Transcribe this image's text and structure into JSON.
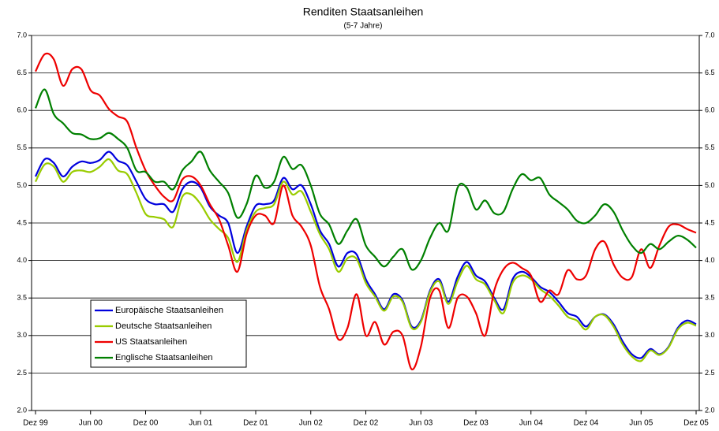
{
  "chart_data": {
    "type": "line",
    "title": "Renditen Staatsanleihen",
    "subtitle": "(5-7 Jahre)",
    "categories": [
      "Dez 99",
      null,
      null,
      null,
      null,
      null,
      "Jun 00",
      null,
      null,
      null,
      null,
      null,
      "Dez 00",
      null,
      null,
      null,
      null,
      null,
      "Jun 01",
      null,
      null,
      null,
      null,
      null,
      "Dez 01",
      null,
      null,
      null,
      null,
      null,
      "Jun 02",
      null,
      null,
      null,
      null,
      null,
      "Dez 02",
      null,
      null,
      null,
      null,
      null,
      "Jun 03",
      null,
      null,
      null,
      null,
      null,
      "Dez 03",
      null,
      null,
      null,
      null,
      null,
      "Jun 04",
      null,
      null,
      null,
      null,
      null,
      "Dez 04",
      null,
      null,
      null,
      null,
      null,
      "Jun 05",
      null,
      null,
      null,
      null,
      null,
      "Dez 05"
    ],
    "series": [
      {
        "name": "Europäische Staatsanleihen",
        "color": "#0000dd",
        "values": [
          5.12,
          5.35,
          5.3,
          5.12,
          5.25,
          5.32,
          5.3,
          5.34,
          5.45,
          5.33,
          5.27,
          5.05,
          4.82,
          4.75,
          4.75,
          4.65,
          4.95,
          5.05,
          4.97,
          4.72,
          4.6,
          4.5,
          4.1,
          4.45,
          4.73,
          4.75,
          4.8,
          5.1,
          4.95,
          5.0,
          4.75,
          4.4,
          4.22,
          3.92,
          4.1,
          4.08,
          3.75,
          3.55,
          3.35,
          3.55,
          3.47,
          3.12,
          3.2,
          3.6,
          3.75,
          3.45,
          3.78,
          3.98,
          3.8,
          3.72,
          3.5,
          3.35,
          3.75,
          3.85,
          3.78,
          3.65,
          3.58,
          3.45,
          3.3,
          3.25,
          3.12,
          3.25,
          3.28,
          3.15,
          2.92,
          2.75,
          2.7,
          2.82,
          2.75,
          2.85,
          3.1,
          3.2,
          3.15
        ]
      },
      {
        "name": "Deutsche Staatsanleihen",
        "color": "#99cc00",
        "values": [
          5.05,
          5.28,
          5.25,
          5.05,
          5.18,
          5.2,
          5.18,
          5.25,
          5.35,
          5.2,
          5.15,
          4.9,
          4.62,
          4.58,
          4.55,
          4.45,
          4.85,
          4.88,
          4.75,
          4.55,
          4.42,
          4.3,
          3.98,
          4.4,
          4.65,
          4.7,
          4.75,
          5.05,
          4.88,
          4.92,
          4.65,
          4.35,
          4.15,
          3.85,
          4.03,
          4.02,
          3.7,
          3.52,
          3.33,
          3.52,
          3.45,
          3.1,
          3.18,
          3.58,
          3.72,
          3.42,
          3.72,
          3.93,
          3.75,
          3.68,
          3.47,
          3.3,
          3.7,
          3.8,
          3.75,
          3.62,
          3.53,
          3.4,
          3.25,
          3.2,
          3.08,
          3.25,
          3.27,
          3.12,
          2.88,
          2.72,
          2.66,
          2.8,
          2.74,
          2.84,
          3.08,
          3.17,
          3.13
        ]
      },
      {
        "name": "US Staatsanleihen",
        "color": "#ee0000",
        "values": [
          6.52,
          6.75,
          6.68,
          6.33,
          6.55,
          6.55,
          6.27,
          6.2,
          6.02,
          5.92,
          5.85,
          5.5,
          5.2,
          5.0,
          4.85,
          4.8,
          5.08,
          5.12,
          5.0,
          4.75,
          4.55,
          4.2,
          3.85,
          4.35,
          4.6,
          4.6,
          4.5,
          5.0,
          4.6,
          4.45,
          4.2,
          3.65,
          3.35,
          2.95,
          3.1,
          3.55,
          3.0,
          3.18,
          2.88,
          3.05,
          3.0,
          2.55,
          2.85,
          3.5,
          3.6,
          3.1,
          3.5,
          3.52,
          3.3,
          3.0,
          3.6,
          3.88,
          3.97,
          3.9,
          3.8,
          3.45,
          3.6,
          3.55,
          3.87,
          3.75,
          3.8,
          4.15,
          4.25,
          3.95,
          3.77,
          3.78,
          4.15,
          3.9,
          4.2,
          4.45,
          4.48,
          4.42,
          4.37
        ]
      },
      {
        "name": "Englische Staatsanleihen",
        "color": "#008000",
        "values": [
          6.03,
          6.28,
          5.95,
          5.83,
          5.7,
          5.68,
          5.62,
          5.63,
          5.7,
          5.62,
          5.5,
          5.2,
          5.18,
          5.05,
          5.05,
          4.95,
          5.2,
          5.32,
          5.45,
          5.2,
          5.05,
          4.9,
          4.57,
          4.75,
          5.13,
          4.97,
          5.05,
          5.38,
          5.22,
          5.27,
          5.0,
          4.62,
          4.48,
          4.22,
          4.4,
          4.55,
          4.2,
          4.05,
          3.92,
          4.05,
          4.15,
          3.88,
          4.0,
          4.3,
          4.5,
          4.4,
          4.97,
          4.97,
          4.68,
          4.8,
          4.63,
          4.65,
          4.95,
          5.15,
          5.07,
          5.1,
          4.88,
          4.78,
          4.68,
          4.53,
          4.5,
          4.6,
          4.75,
          4.65,
          4.4,
          4.2,
          4.1,
          4.22,
          4.15,
          4.25,
          4.33,
          4.28,
          4.17
        ]
      }
    ],
    "ylim": [
      2,
      7
    ],
    "yticks": [
      {
        "value": 2,
        "label": "2.0"
      },
      {
        "value": 2.5,
        "label": "2.5"
      },
      {
        "value": 3,
        "label": "3.0"
      },
      {
        "value": 3.5,
        "label": "3.5"
      },
      {
        "value": 4,
        "label": "4.0"
      },
      {
        "value": 4.5,
        "label": "4.5"
      },
      {
        "value": 5,
        "label": "5.0"
      },
      {
        "value": 5.5,
        "label": "5.5"
      },
      {
        "value": 6,
        "label": "6.0"
      },
      {
        "value": 6.5,
        "label": "6.5"
      },
      {
        "value": 7,
        "label": "7.0"
      }
    ],
    "y2lim": [
      2,
      7
    ],
    "y2ticks": [
      {
        "value": 2,
        "label": "2.0"
      },
      {
        "value": 2.5,
        "label": "2.5"
      },
      {
        "value": 3,
        "label": "3.0"
      },
      {
        "value": 3.5,
        "label": "3.5"
      },
      {
        "value": 4,
        "label": "4.0"
      },
      {
        "value": 4.5,
        "label": "4.5"
      },
      {
        "value": 5,
        "label": "5.0"
      },
      {
        "value": 5.5,
        "label": "5.5"
      },
      {
        "value": 6,
        "label": "6.0"
      },
      {
        "value": 6.5,
        "label": "6.5"
      },
      {
        "value": 7,
        "label": "7.0"
      }
    ],
    "grid": true,
    "legend": "lower left"
  }
}
